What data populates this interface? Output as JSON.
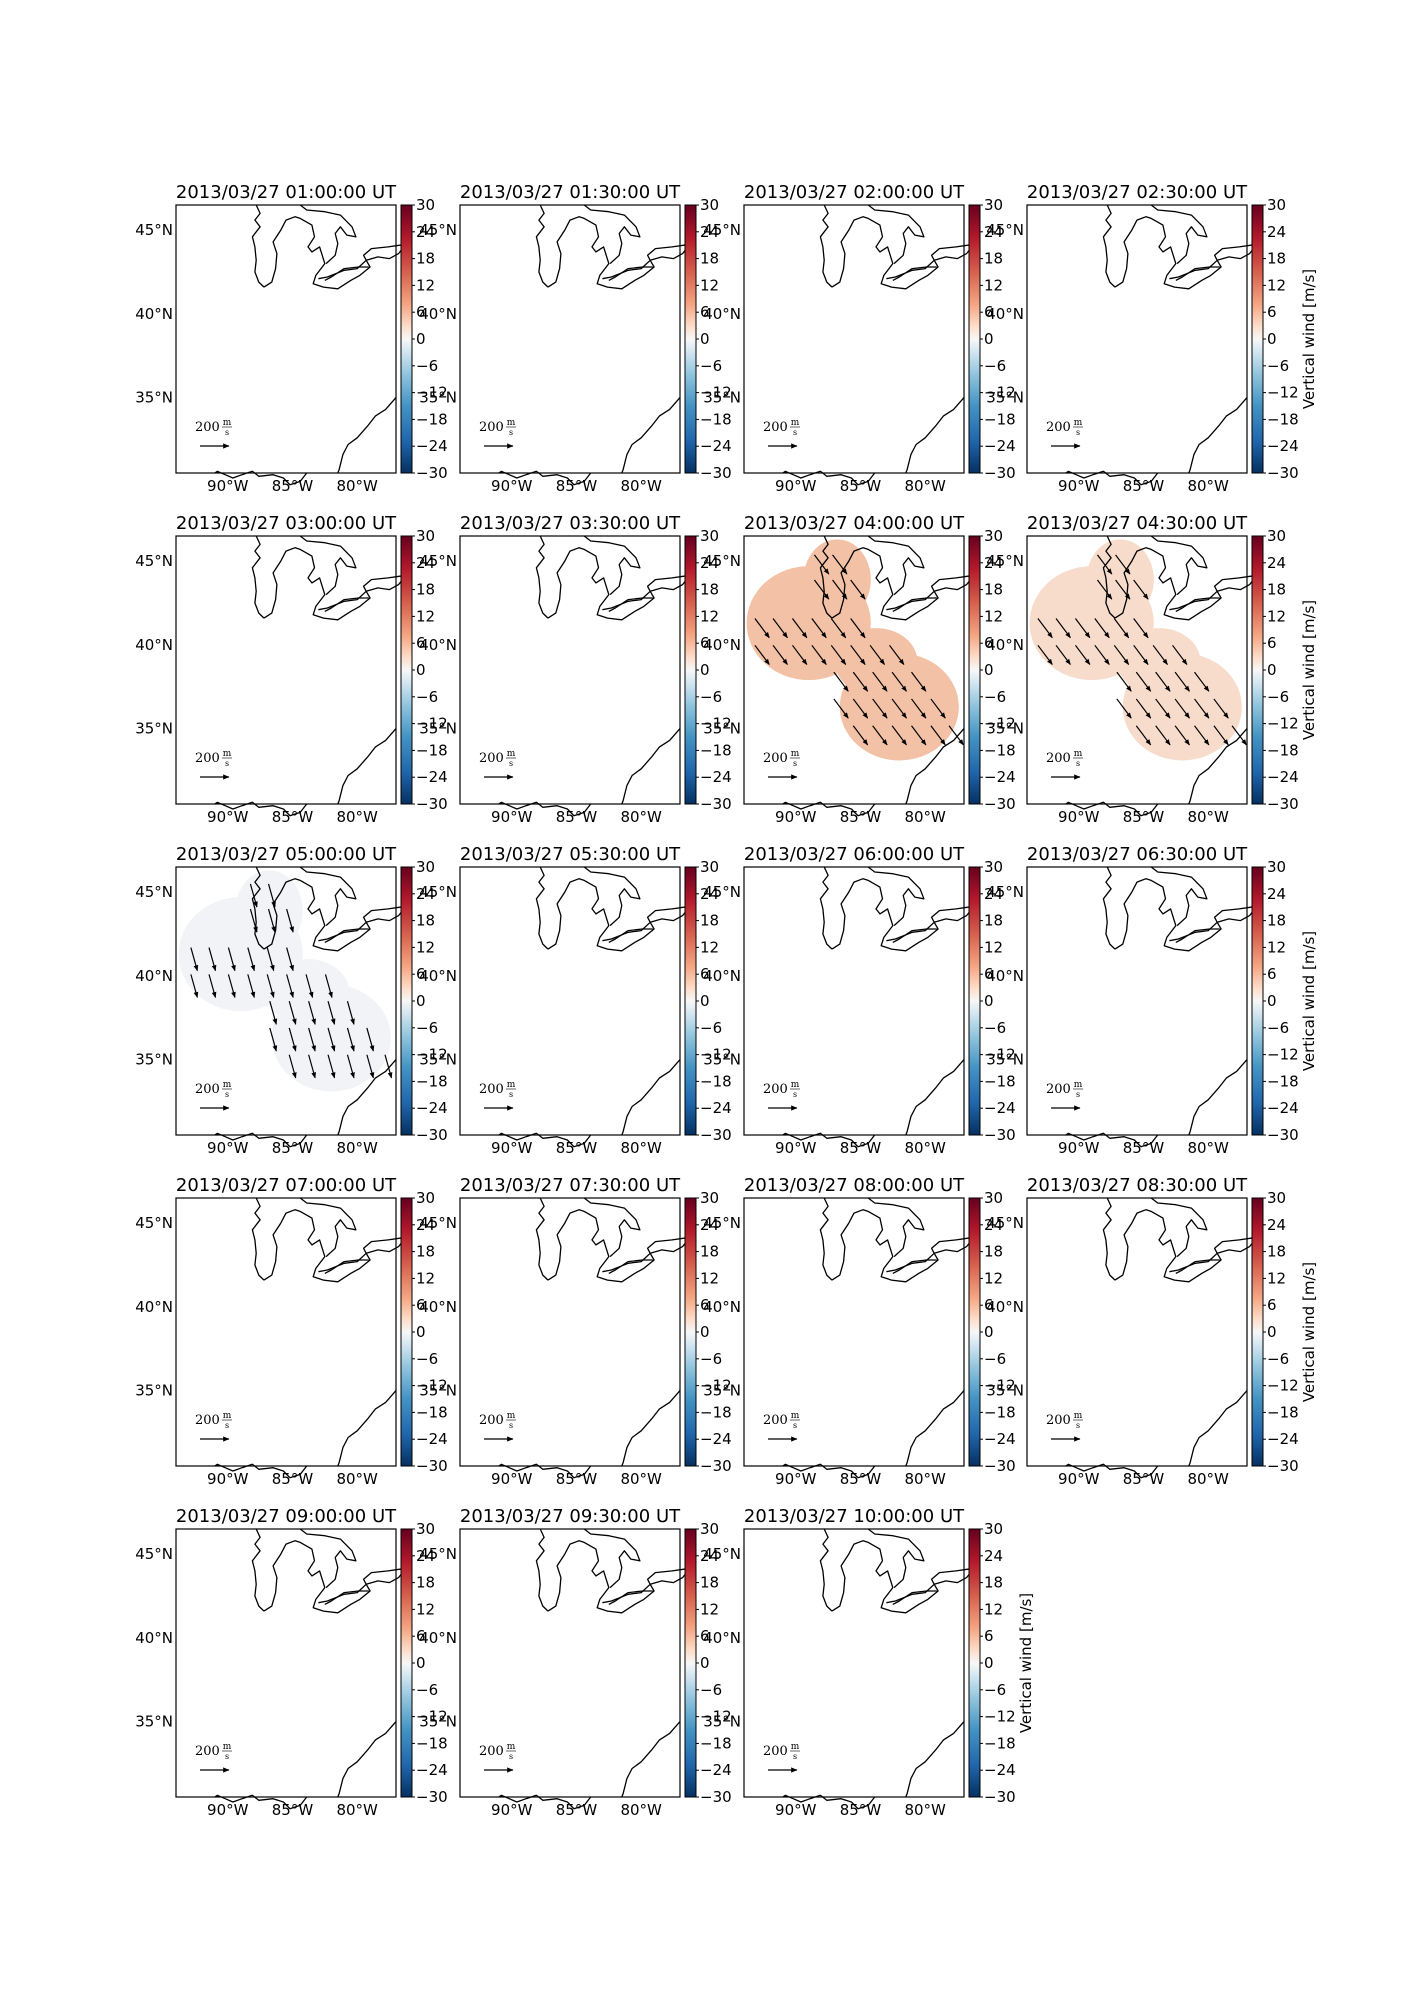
{
  "figure": {
    "colorbar": {
      "label": "Vertical wind [m/s]",
      "ticks": [
        "30",
        "24",
        "18",
        "12",
        "6",
        "0",
        "−6",
        "−12",
        "−18",
        "−24",
        "−30"
      ],
      "range": [
        -30,
        30
      ],
      "colormap": "RdBu_r",
      "label_shown_on_right_column": true
    },
    "map_axes": {
      "lat_labels": [
        "45°N",
        "40°N",
        "35°N"
      ],
      "lon_labels": [
        "90°W",
        "85°W",
        "80°W"
      ],
      "extent": {
        "lon": [
          -94,
          -77
        ],
        "lat": [
          30.5,
          46.5
        ]
      }
    },
    "scale_arrow": {
      "value": "200",
      "unit_num": "m",
      "unit_den": "s"
    },
    "panels": [
      {
        "title": "2013/03/27 01:00:00 UT",
        "vertical_wind": null,
        "vectors": false
      },
      {
        "title": "2013/03/27 01:30:00 UT",
        "vertical_wind": null,
        "vectors": false
      },
      {
        "title": "2013/03/27 02:00:00 UT",
        "vertical_wind": null,
        "vectors": false
      },
      {
        "title": "2013/03/27 02:30:00 UT",
        "vertical_wind": null,
        "vectors": false
      },
      {
        "title": "2013/03/27 03:00:00 UT",
        "vertical_wind": null,
        "vectors": false
      },
      {
        "title": "2013/03/27 03:30:00 UT",
        "vertical_wind": null,
        "vectors": false
      },
      {
        "title": "2013/03/27 04:00:00 UT",
        "vertical_wind": 7,
        "vectors": true,
        "fill": "#f3c1a5"
      },
      {
        "title": "2013/03/27 04:30:00 UT",
        "vertical_wind": 4,
        "vectors": true,
        "fill": "#f8dccb"
      },
      {
        "title": "2013/03/27 05:00:00 UT",
        "vertical_wind": -1,
        "vectors": true,
        "fill": "#f1f3f6"
      },
      {
        "title": "2013/03/27 05:30:00 UT",
        "vertical_wind": null,
        "vectors": false
      },
      {
        "title": "2013/03/27 06:00:00 UT",
        "vertical_wind": null,
        "vectors": false
      },
      {
        "title": "2013/03/27 06:30:00 UT",
        "vertical_wind": null,
        "vectors": false
      },
      {
        "title": "2013/03/27 07:00:00 UT",
        "vertical_wind": null,
        "vectors": false
      },
      {
        "title": "2013/03/27 07:30:00 UT",
        "vertical_wind": null,
        "vectors": false
      },
      {
        "title": "2013/03/27 08:00:00 UT",
        "vertical_wind": null,
        "vectors": false
      },
      {
        "title": "2013/03/27 08:30:00 UT",
        "vertical_wind": null,
        "vectors": false
      },
      {
        "title": "2013/03/27 09:00:00 UT",
        "vertical_wind": null,
        "vectors": false
      },
      {
        "title": "2013/03/27 09:30:00 UT",
        "vertical_wind": null,
        "vectors": false
      },
      {
        "title": "2013/03/27 10:00:00 UT",
        "vertical_wind": null,
        "vectors": false
      }
    ]
  }
}
